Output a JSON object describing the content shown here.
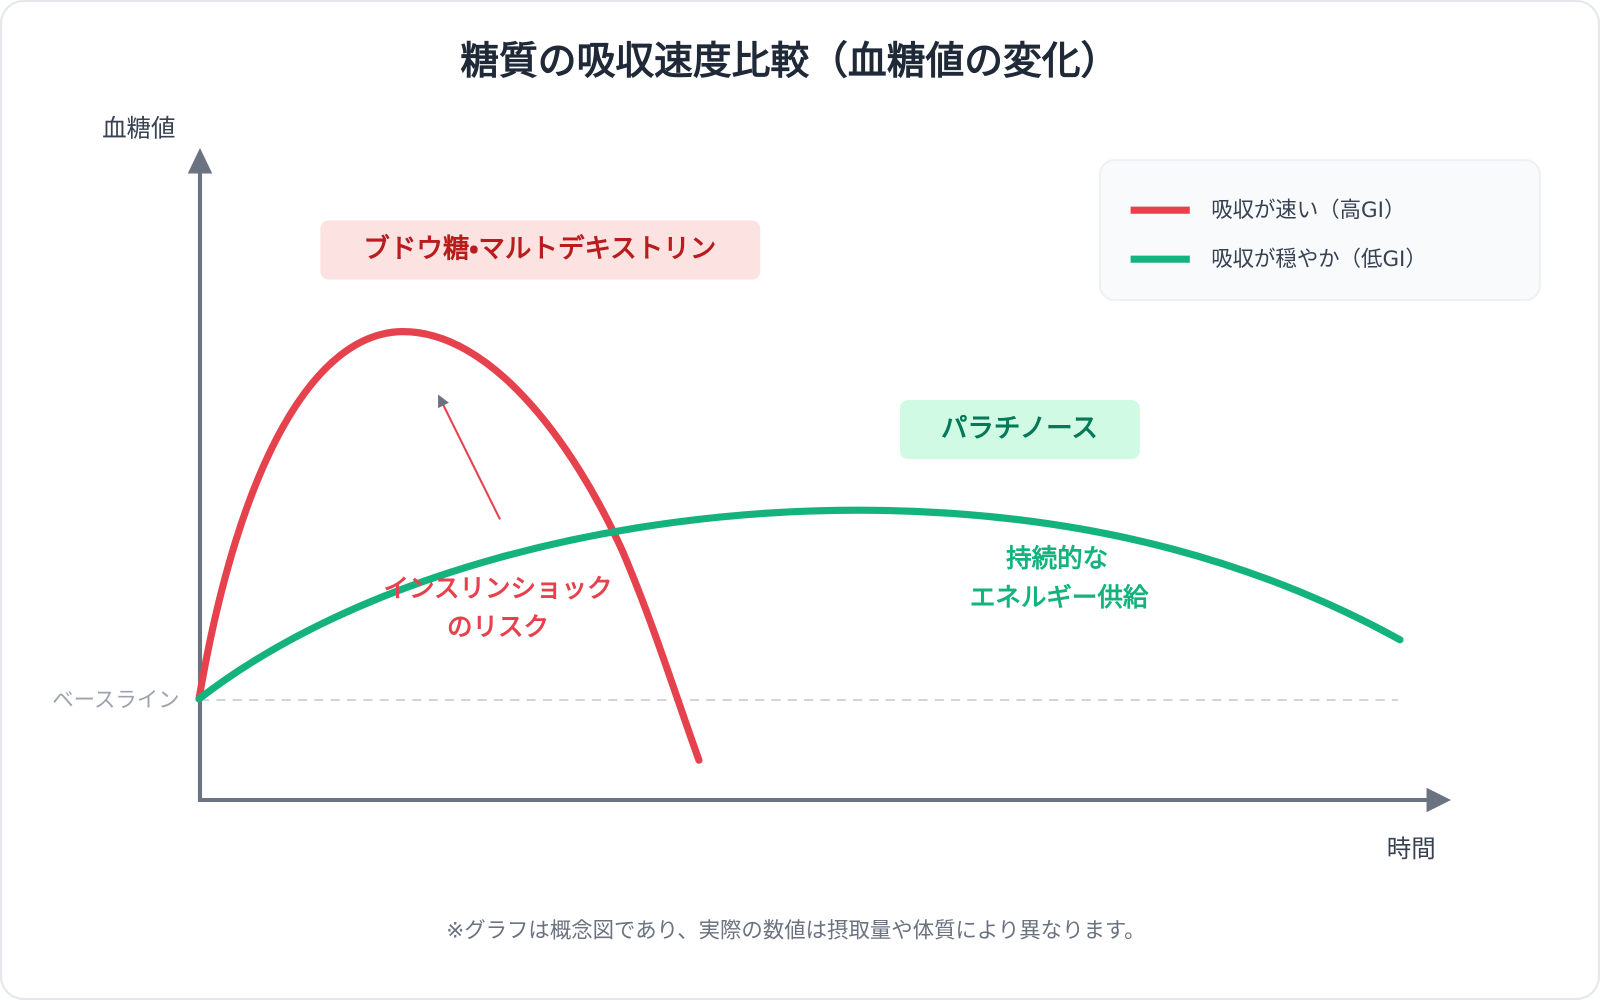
{
  "title": "糖質の吸収速度比較（血糖値の変化）",
  "axes": {
    "y_label": "血糖値",
    "x_label": "時間",
    "baseline_label": "ベースライン"
  },
  "legend": {
    "items": [
      {
        "label": "吸収が速い（高GI）",
        "color": "#e5424d"
      },
      {
        "label": "吸収が穏やか（低GI）",
        "color": "#14b37d"
      }
    ]
  },
  "labels": {
    "fast_sugar": "ブドウ糖・マルトデキストリン",
    "slow_sugar": "パラチノース"
  },
  "annotations": {
    "fast": [
      "インスリンショック",
      "のリスク"
    ],
    "slow": [
      "持続的な",
      "エネルギー供給"
    ]
  },
  "footnote": "※グラフは概念図であり、実際の数値は摂取量や体質により異なります。"
}
